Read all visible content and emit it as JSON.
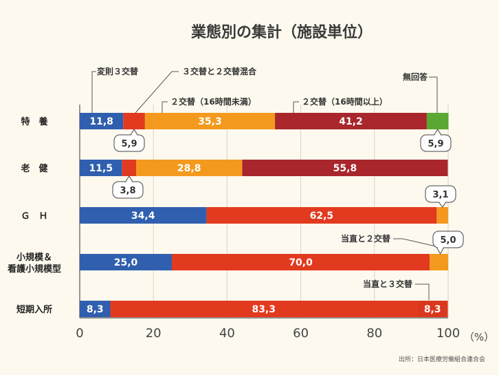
{
  "chart_data": {
    "type": "bar",
    "orientation": "horizontal",
    "stacked": true,
    "title": "業態別の集計（施設単位）",
    "unit": "（%）",
    "source": "出所：日本医療労働組合連合会",
    "xlim": [
      0,
      100
    ],
    "xticks": [
      "0",
      "20",
      "40",
      "60",
      "80",
      "100"
    ],
    "grid": true,
    "series": [
      {
        "name": "変則３交替",
        "color": "#2f5fae"
      },
      {
        "name": "３交替と２交替混合",
        "color": "#e23a1f"
      },
      {
        "name": "２交替（16時間未満）",
        "color": "#f39a1e"
      },
      {
        "name": "２交替（16時間以上）",
        "color": "#a8262c"
      },
      {
        "name": "無回答",
        "color": "#5aa832"
      },
      {
        "name": "当直と２交替",
        "color": "#f39a1e"
      },
      {
        "name": "当直と３交替",
        "color": "#d9381e"
      }
    ],
    "categories": [
      {
        "label": "特　養",
        "segments": [
          {
            "series": "変則３交替",
            "value": 11.8,
            "label": "11,8"
          },
          {
            "series": "３交替と２交替混合",
            "value": 5.9,
            "label": "5,9",
            "callout": true
          },
          {
            "series": "２交替（16時間未満）",
            "value": 35.3,
            "label": "35,3"
          },
          {
            "series": "２交替（16時間以上）",
            "value": 41.2,
            "label": "41,2"
          },
          {
            "series": "無回答",
            "value": 5.9,
            "label": "5,9",
            "callout": true
          }
        ]
      },
      {
        "label": "老　健",
        "segments": [
          {
            "series": "変則３交替",
            "value": 11.5,
            "label": "11,5"
          },
          {
            "series": "３交替と２交替混合",
            "value": 3.8,
            "label": "3,8",
            "callout": true
          },
          {
            "series": "２交替（16時間未満）",
            "value": 28.8,
            "label": "28,8"
          },
          {
            "series": "２交替（16時間以上）",
            "value": 55.8,
            "label": "55,8"
          }
        ]
      },
      {
        "label": "Ｇ　Ｈ",
        "segments": [
          {
            "series": "変則３交替",
            "value": 34.4,
            "label": "34,4"
          },
          {
            "series": "３交替と２交替混合",
            "value": 62.5,
            "label": "62,5"
          },
          {
            "series": "２交替（16時間未満）",
            "value": 3.1,
            "label": "3,1",
            "callout": true
          }
        ]
      },
      {
        "label": "小規模＆\n看護小規模型",
        "segments": [
          {
            "series": "変則３交替",
            "value": 25.0,
            "label": "25,0"
          },
          {
            "series": "３交替と２交替混合",
            "value": 70.0,
            "label": "70,0"
          },
          {
            "series": "当直と２交替",
            "value": 5.0,
            "label": "5,0",
            "callout": true
          }
        ]
      },
      {
        "label": "短期入所",
        "segments": [
          {
            "series": "変則３交替",
            "value": 8.3,
            "label": "8,3"
          },
          {
            "series": "３交替と２交替混合",
            "value": 83.3,
            "label": "83,3"
          },
          {
            "series": "当直と３交替",
            "value": 8.3,
            "label": "8,3"
          }
        ]
      }
    ],
    "legend_labels": {
      "henso": "変則３交替",
      "mixed": "３交替と２交替混合",
      "under16": "２交替（16時間未満）",
      "over16": "２交替（16時間以上）",
      "noanswer": "無回答",
      "toc2": "当直と２交替",
      "toc3": "当直と３交替"
    }
  }
}
